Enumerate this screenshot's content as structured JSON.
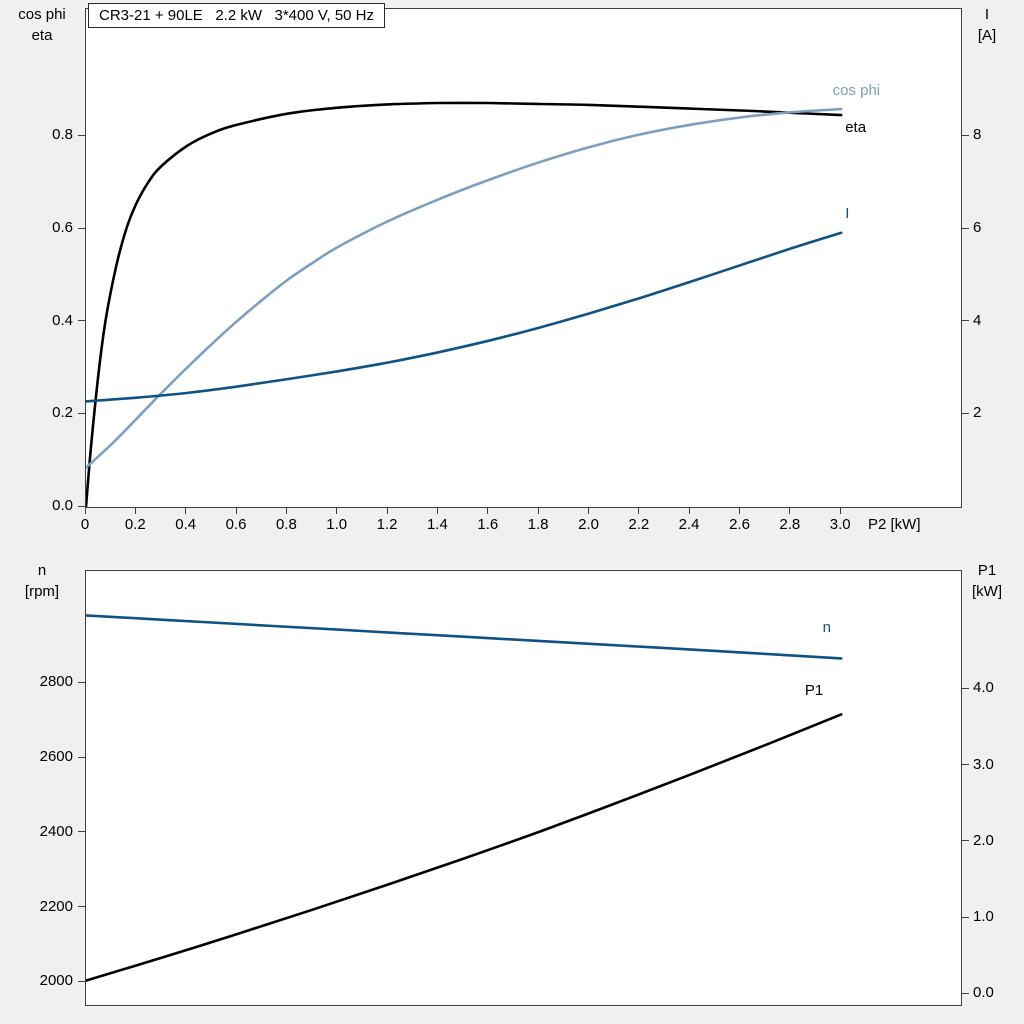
{
  "page": {
    "background": "#f0f0f0",
    "plot_background": "#ffffff",
    "frame_color": "#3f3f3f"
  },
  "title_box": {
    "text": "CR3-21 + 90LE   2.2 kW   3*400 V, 50 Hz"
  },
  "colors": {
    "eta_black": "#000000",
    "cosphi_blue": "#7c9fc0",
    "current_blue": "#0e5384"
  },
  "chart_data": [
    {
      "type": "line",
      "name": "efficiency-cosphi-current-vs-p2",
      "title": "CR3-21 + 90LE   2.2 kW   3*400 V, 50 Hz",
      "x_axis": {
        "label": "P2 [kW]",
        "range": [
          0,
          3.476
        ],
        "ticks": [
          "0",
          "0.2",
          "0.4",
          "0.6",
          "0.8",
          "1.0",
          "1.2",
          "1.4",
          "1.6",
          "1.8",
          "2.0",
          "2.2",
          "2.4",
          "2.6",
          "2.8",
          "3.0"
        ],
        "tick_values": [
          0,
          0.2,
          0.4,
          0.6,
          0.8,
          1.0,
          1.2,
          1.4,
          1.6,
          1.8,
          2.0,
          2.2,
          2.4,
          2.6,
          2.8,
          3.0
        ]
      },
      "left_axis": {
        "label_lines": [
          "cos phi",
          "eta"
        ],
        "range": [
          0,
          1.075
        ],
        "ticks": [
          "0.0",
          "0.2",
          "0.4",
          "0.6",
          "0.8"
        ],
        "tick_values": [
          0,
          0.2,
          0.4,
          0.6,
          0.8
        ]
      },
      "right_axis": {
        "label_lines": [
          "I",
          "[A]"
        ],
        "range": [
          0,
          10.75
        ],
        "ticks": [
          "2",
          "4",
          "6",
          "8"
        ],
        "tick_values": [
          2,
          4,
          6,
          8
        ]
      },
      "grid": false,
      "series": [
        {
          "name": "eta",
          "label": "eta",
          "color": "eta_black",
          "axis": "left",
          "label_pos": [
            3.02,
            0.815
          ],
          "points": [
            [
              0,
              0
            ],
            [
              0.02,
              0.13
            ],
            [
              0.05,
              0.29
            ],
            [
              0.08,
              0.41
            ],
            [
              0.12,
              0.52
            ],
            [
              0.16,
              0.6
            ],
            [
              0.2,
              0.655
            ],
            [
              0.25,
              0.703
            ],
            [
              0.3,
              0.736
            ],
            [
              0.4,
              0.779
            ],
            [
              0.5,
              0.807
            ],
            [
              0.6,
              0.825
            ],
            [
              0.8,
              0.849
            ],
            [
              1.0,
              0.862
            ],
            [
              1.2,
              0.869
            ],
            [
              1.4,
              0.872
            ],
            [
              1.6,
              0.872
            ],
            [
              1.8,
              0.87
            ],
            [
              2.0,
              0.868
            ],
            [
              2.2,
              0.864
            ],
            [
              2.4,
              0.86
            ],
            [
              2.6,
              0.856
            ],
            [
              2.8,
              0.851
            ],
            [
              3.0,
              0.846
            ]
          ]
        },
        {
          "name": "cos-phi",
          "label": "cos phi",
          "color": "cosphi_blue",
          "axis": "left",
          "label_pos": [
            2.97,
            0.895
          ],
          "points": [
            [
              0,
              0.085
            ],
            [
              0.1,
              0.135
            ],
            [
              0.2,
              0.19
            ],
            [
              0.3,
              0.246
            ],
            [
              0.4,
              0.3
            ],
            [
              0.5,
              0.352
            ],
            [
              0.6,
              0.401
            ],
            [
              0.7,
              0.447
            ],
            [
              0.8,
              0.49
            ],
            [
              0.9,
              0.527
            ],
            [
              1.0,
              0.561
            ],
            [
              1.2,
              0.617
            ],
            [
              1.4,
              0.664
            ],
            [
              1.6,
              0.706
            ],
            [
              1.8,
              0.744
            ],
            [
              2.0,
              0.777
            ],
            [
              2.2,
              0.804
            ],
            [
              2.4,
              0.825
            ],
            [
              2.6,
              0.841
            ],
            [
              2.8,
              0.852
            ],
            [
              3.0,
              0.859
            ]
          ]
        },
        {
          "name": "current",
          "label": "I",
          "color": "current_blue",
          "axis": "right",
          "label_pos": [
            3.02,
            6.3
          ],
          "points": [
            [
              0,
              2.28
            ],
            [
              0.2,
              2.36
            ],
            [
              0.4,
              2.46
            ],
            [
              0.6,
              2.6
            ],
            [
              0.8,
              2.76
            ],
            [
              1.0,
              2.93
            ],
            [
              1.2,
              3.12
            ],
            [
              1.4,
              3.34
            ],
            [
              1.6,
              3.59
            ],
            [
              1.8,
              3.87
            ],
            [
              2.0,
              4.18
            ],
            [
              2.2,
              4.51
            ],
            [
              2.4,
              4.86
            ],
            [
              2.6,
              5.22
            ],
            [
              2.8,
              5.58
            ],
            [
              3.0,
              5.92
            ]
          ]
        }
      ]
    },
    {
      "type": "line",
      "name": "speed-p1-vs-p2",
      "x_axis": {
        "label": "",
        "range": [
          0,
          3.476
        ],
        "ticks": [],
        "tick_values": []
      },
      "left_axis": {
        "label_lines": [
          "n",
          "[rpm]"
        ],
        "range": [
          1939,
          3101
        ],
        "ticks": [
          "2000",
          "2200",
          "2400",
          "2600",
          "2800"
        ],
        "tick_values": [
          2000,
          2200,
          2400,
          2600,
          2800
        ]
      },
      "right_axis": {
        "label_lines": [
          "P1",
          "[kW]"
        ],
        "range": [
          -0.14,
          5.55
        ],
        "ticks": [
          "0.0",
          "1.0",
          "2.0",
          "3.0",
          "4.0"
        ],
        "tick_values": [
          0,
          1,
          2,
          3,
          4
        ]
      },
      "grid": false,
      "series": [
        {
          "name": "speed",
          "label": "n",
          "color": "current_blue",
          "axis": "left",
          "label_pos": [
            2.93,
            2945
          ],
          "points": [
            [
              0,
              2982
            ],
            [
              0.5,
              2963
            ],
            [
              1.0,
              2944
            ],
            [
              1.5,
              2925
            ],
            [
              2.0,
              2906
            ],
            [
              2.5,
              2887
            ],
            [
              3.0,
              2867
            ]
          ]
        },
        {
          "name": "p1",
          "label": "P1",
          "color": "eta_black",
          "axis": "right",
          "label_pos": [
            2.86,
            3.97
          ],
          "points": [
            [
              0,
              0.18
            ],
            [
              0.3,
              0.48
            ],
            [
              0.6,
              0.79
            ],
            [
              0.9,
              1.11
            ],
            [
              1.2,
              1.44
            ],
            [
              1.5,
              1.78
            ],
            [
              1.8,
              2.13
            ],
            [
              2.1,
              2.5
            ],
            [
              2.4,
              2.88
            ],
            [
              2.7,
              3.27
            ],
            [
              3.0,
              3.67
            ]
          ]
        }
      ]
    }
  ]
}
